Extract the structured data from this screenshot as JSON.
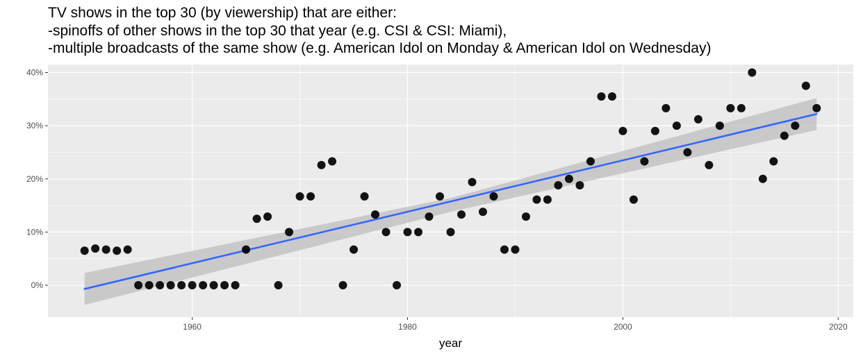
{
  "chart_data": {
    "type": "scatter",
    "title_lines": [
      "TV shows in the top 30 (by viewership) that are either:",
      "-spinoffs of other shows in the top 30 that year (e.g. CSI & CSI: Miami),",
      "-multiple broadcasts of the same show (e.g. American Idol on Monday & American Idol on Wednesday)"
    ],
    "xlabel": "year",
    "ylabel": "",
    "xlim": [
      1946.6,
      2021.4
    ],
    "ylim": [
      -6,
      41.5
    ],
    "x_ticks": [
      1960,
      1980,
      2000,
      2020
    ],
    "x_tick_labels": [
      "1960",
      "1980",
      "2000",
      "2020"
    ],
    "y_ticks": [
      0,
      10,
      20,
      30,
      40
    ],
    "y_tick_labels": [
      "0%",
      "10%",
      "20%",
      "30%",
      "40%"
    ],
    "grid": true,
    "colors": {
      "panel": "#ebebeb",
      "grid": "#ffffff",
      "points": "#000000",
      "trend": "#3366ff",
      "band": "#bdbdbd"
    },
    "points": [
      {
        "x": 1950,
        "y": 6.5
      },
      {
        "x": 1951,
        "y": 6.9
      },
      {
        "x": 1952,
        "y": 6.7
      },
      {
        "x": 1953,
        "y": 6.5
      },
      {
        "x": 1954,
        "y": 6.7
      },
      {
        "x": 1955,
        "y": 0
      },
      {
        "x": 1956,
        "y": 0
      },
      {
        "x": 1957,
        "y": 0
      },
      {
        "x": 1958,
        "y": 0
      },
      {
        "x": 1959,
        "y": 0
      },
      {
        "x": 1960,
        "y": 0
      },
      {
        "x": 1961,
        "y": 0
      },
      {
        "x": 1962,
        "y": 0
      },
      {
        "x": 1963,
        "y": 0
      },
      {
        "x": 1964,
        "y": 0
      },
      {
        "x": 1965,
        "y": 6.7
      },
      {
        "x": 1966,
        "y": 12.5
      },
      {
        "x": 1967,
        "y": 12.9
      },
      {
        "x": 1968,
        "y": 0
      },
      {
        "x": 1969,
        "y": 10
      },
      {
        "x": 1970,
        "y": 16.7
      },
      {
        "x": 1971,
        "y": 16.7
      },
      {
        "x": 1972,
        "y": 22.6
      },
      {
        "x": 1973,
        "y": 23.3
      },
      {
        "x": 1974,
        "y": 0
      },
      {
        "x": 1975,
        "y": 6.7
      },
      {
        "x": 1976,
        "y": 16.7
      },
      {
        "x": 1977,
        "y": 13.3
      },
      {
        "x": 1978,
        "y": 10
      },
      {
        "x": 1979,
        "y": 0
      },
      {
        "x": 1980,
        "y": 10
      },
      {
        "x": 1981,
        "y": 10
      },
      {
        "x": 1982,
        "y": 12.9
      },
      {
        "x": 1983,
        "y": 16.7
      },
      {
        "x": 1984,
        "y": 10
      },
      {
        "x": 1985,
        "y": 13.3
      },
      {
        "x": 1986,
        "y": 19.4
      },
      {
        "x": 1987,
        "y": 13.8
      },
      {
        "x": 1988,
        "y": 16.7
      },
      {
        "x": 1989,
        "y": 6.7
      },
      {
        "x": 1990,
        "y": 6.7
      },
      {
        "x": 1991,
        "y": 12.9
      },
      {
        "x": 1992,
        "y": 16.1
      },
      {
        "x": 1993,
        "y": 16.1
      },
      {
        "x": 1994,
        "y": 18.8
      },
      {
        "x": 1995,
        "y": 20
      },
      {
        "x": 1996,
        "y": 18.8
      },
      {
        "x": 1997,
        "y": 23.3
      },
      {
        "x": 1998,
        "y": 35.5
      },
      {
        "x": 1999,
        "y": 35.5
      },
      {
        "x": 2000,
        "y": 29
      },
      {
        "x": 2001,
        "y": 16.1
      },
      {
        "x": 2002,
        "y": 23.3
      },
      {
        "x": 2003,
        "y": 29
      },
      {
        "x": 2004,
        "y": 33.3
      },
      {
        "x": 2005,
        "y": 30
      },
      {
        "x": 2006,
        "y": 25
      },
      {
        "x": 2007,
        "y": 31.2
      },
      {
        "x": 2008,
        "y": 22.6
      },
      {
        "x": 2009,
        "y": 30
      },
      {
        "x": 2010,
        "y": 33.3
      },
      {
        "x": 2011,
        "y": 33.3
      },
      {
        "x": 2012,
        "y": 40
      },
      {
        "x": 2013,
        "y": 20
      },
      {
        "x": 2014,
        "y": 23.3
      },
      {
        "x": 2015,
        "y": 28.1
      },
      {
        "x": 2016,
        "y": 30
      },
      {
        "x": 2017,
        "y": 37.5
      },
      {
        "x": 2018,
        "y": 33.3
      }
    ],
    "trend_line": {
      "x": [
        1950,
        2018
      ],
      "y": [
        -0.7,
        32.2
      ],
      "band": [
        {
          "x": 1950,
          "low": -3.7,
          "high": 2.3
        },
        {
          "x": 1984,
          "low": 13.8,
          "high": 16.4
        },
        {
          "x": 2018,
          "low": 29.2,
          "high": 35.2
        }
      ]
    }
  }
}
